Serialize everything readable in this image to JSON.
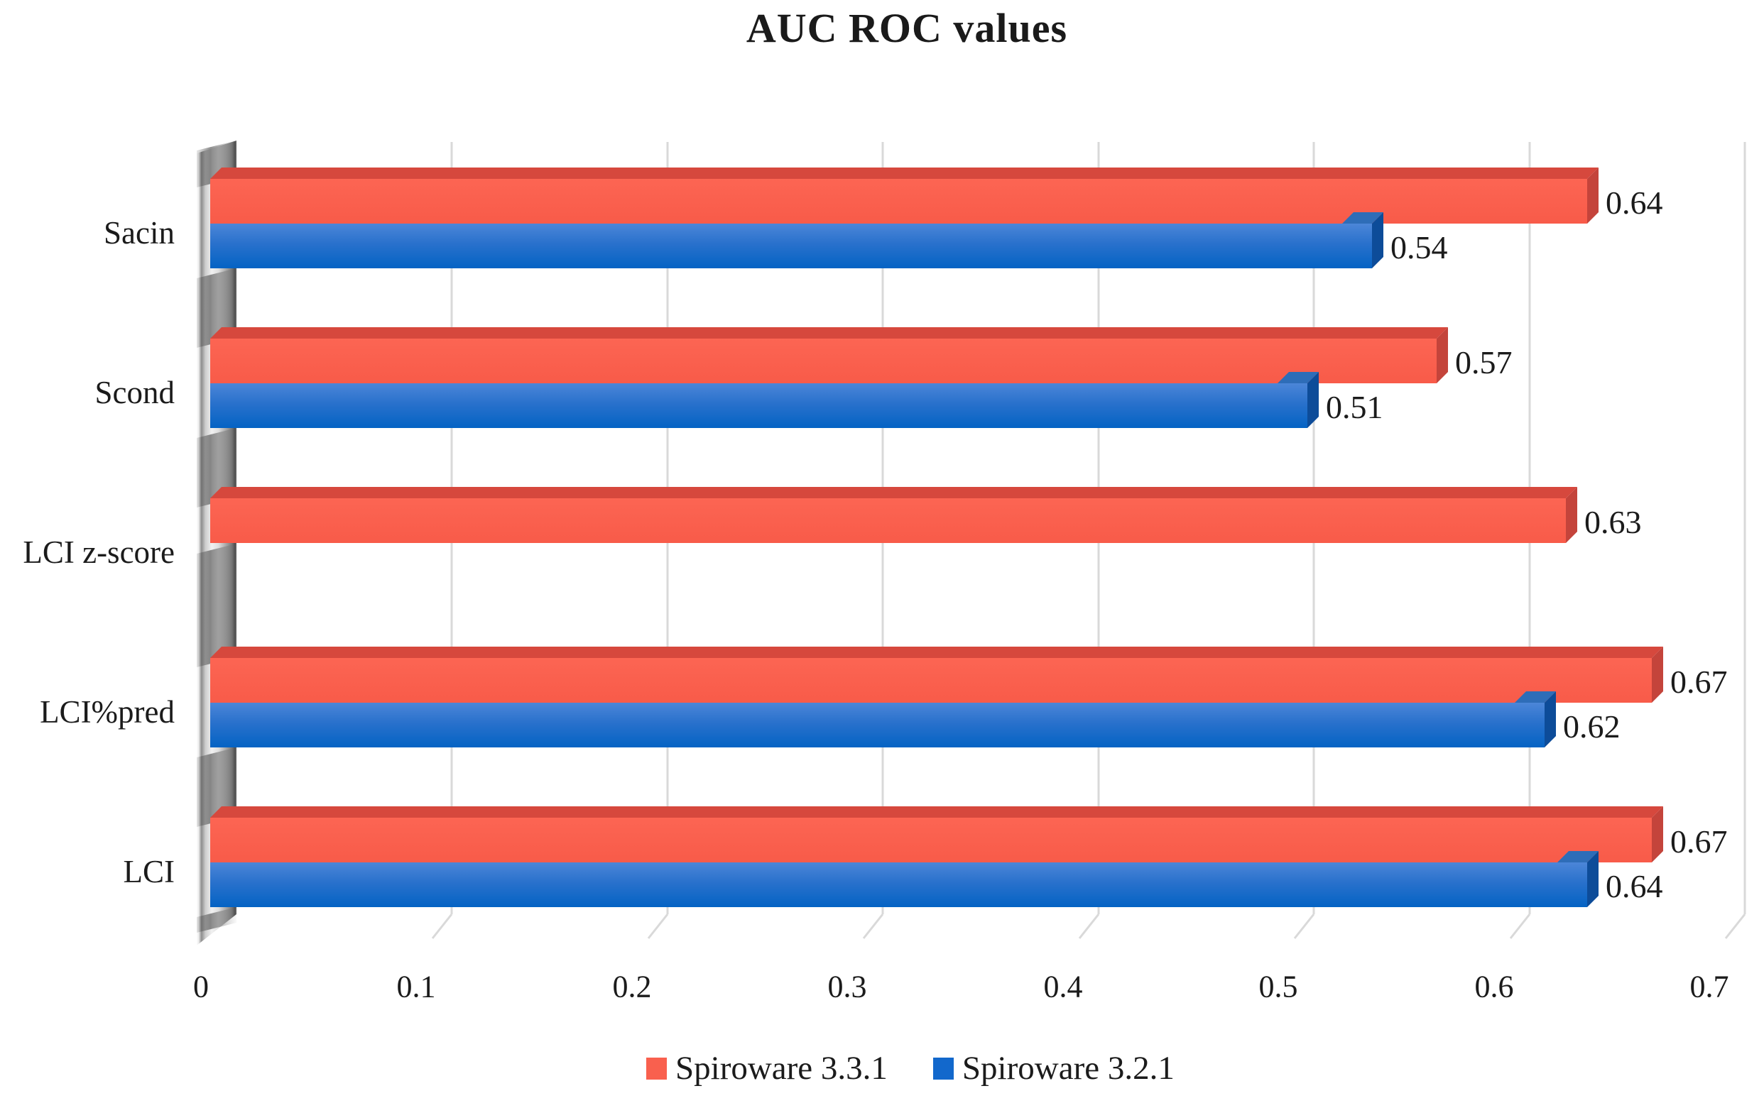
{
  "chart_data": {
    "type": "bar",
    "orientation": "horizontal",
    "style": "3d",
    "title": "AUC ROC values",
    "categories": [
      "Sacin",
      "Scond",
      "LCI z-score",
      "LCI%pred",
      "LCI"
    ],
    "series": [
      {
        "name": "Spiroware 3.3.1",
        "color": "#F9604E",
        "color_top_bevel": "#D6483D",
        "color_side_bevel": "#C4443B",
        "values": [
          0.64,
          0.57,
          0.63,
          0.67,
          0.67
        ],
        "value_labels": [
          "0.64",
          "0.57",
          "0.63",
          "0.67",
          "0.67"
        ]
      },
      {
        "name": "Spiroware 3.2.1",
        "color": "#1268CC",
        "color_top_bevel": "#2E6DB8",
        "color_side_bevel": "#0D4C99",
        "values": [
          0.54,
          0.51,
          null,
          0.62,
          0.64
        ],
        "value_labels": [
          "0.54",
          "0.51",
          null,
          "0.62",
          "0.64"
        ]
      }
    ],
    "x_ticks": [
      "0",
      "0.1",
      "0.2",
      "0.3",
      "0.4",
      "0.5",
      "0.6",
      "0.7"
    ],
    "xlim": [
      0,
      0.7
    ],
    "grid": true,
    "gridline_color": "#D9D9D9",
    "legend_position": "bottom",
    "text_color": "#1b1b1b"
  }
}
